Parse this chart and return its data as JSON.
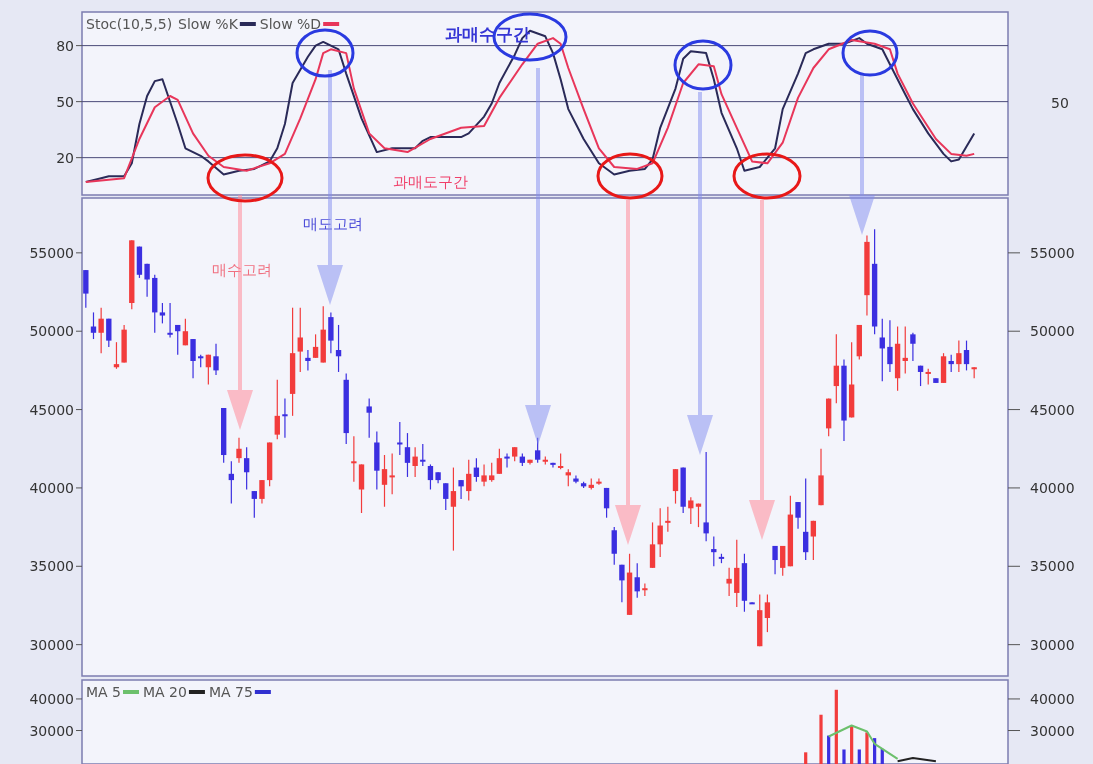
{
  "chart_data": [
    {
      "type": "line",
      "title": "Stoc(10,5,5)",
      "ylim": [
        0,
        98
      ],
      "yticks": [
        20,
        50,
        80
      ],
      "grid": "y",
      "legend": "top left",
      "line_style": "solid",
      "annotations": [
        "과매수구간",
        "과매도구간",
        "50"
      ],
      "categories": [
        null,
        null,
        null,
        null,
        null,
        null,
        null,
        null,
        null,
        null,
        null,
        null,
        null,
        null,
        null,
        null,
        null,
        null,
        null,
        null,
        null,
        null,
        null,
        null,
        null,
        null,
        null,
        null,
        null,
        null,
        null,
        null,
        null,
        null,
        null,
        null,
        null,
        null,
        null,
        null,
        null,
        null,
        null,
        null,
        null,
        null,
        null,
        null,
        null,
        null,
        null,
        null,
        null,
        null,
        null,
        null,
        null,
        null,
        null,
        null,
        null,
        null,
        null,
        null,
        null,
        null,
        null,
        null,
        null,
        null,
        null,
        null,
        null,
        null,
        null,
        null,
        null,
        null,
        null,
        null,
        null,
        null,
        null,
        null,
        null,
        null,
        null,
        null,
        null,
        null,
        null,
        null,
        null,
        null,
        null,
        null,
        null,
        null,
        null,
        null,
        null,
        null,
        null,
        null,
        null,
        null,
        null,
        null,
        null,
        null,
        null,
        null,
        null,
        null,
        null,
        null,
        null
      ],
      "series": [
        {
          "name": "Slow %K",
          "color": "#2a2a58",
          "values": [
            7,
            null,
            9,
            10,
            null,
            10,
            17,
            38,
            53,
            61,
            62,
            null,
            38,
            25,
            null,
            21,
            18,
            null,
            11,
            null,
            13,
            null,
            14,
            null,
            18,
            25,
            38,
            60,
            null,
            74,
            80,
            82,
            null,
            78,
            65,
            null,
            41,
            null,
            23,
            null,
            25,
            25,
            null,
            25,
            29,
            31,
            null,
            31,
            null,
            31,
            33,
            null,
            42,
            49,
            60,
            null,
            75,
            84,
            88,
            null,
            85,
            76,
            62,
            46,
            null,
            30,
            null,
            17,
            null,
            11,
            null,
            13,
            null,
            14,
            19,
            36,
            null,
            57,
            73,
            77,
            null,
            76,
            62,
            44,
            null,
            25,
            13,
            null,
            15,
            null,
            25,
            46,
            null,
            65,
            76,
            78,
            null,
            81,
            null,
            81,
            null,
            84,
            81,
            null,
            78,
            70,
            null,
            54,
            46,
            null,
            33,
            null,
            22,
            18,
            19,
            26,
            33
          ]
        },
        {
          "name": "Slow %D",
          "color": "#e8365a",
          "values": [
            7,
            null,
            null,
            null,
            null,
            9,
            null,
            30,
            null,
            47,
            null,
            53,
            51,
            null,
            33,
            null,
            21,
            null,
            15,
            null,
            null,
            13,
            null,
            null,
            17,
            null,
            22,
            null,
            41,
            null,
            62,
            76,
            78,
            null,
            76,
            57,
            null,
            33,
            null,
            25,
            null,
            null,
            23,
            null,
            null,
            30,
            null,
            null,
            null,
            36,
            null,
            null,
            37,
            null,
            52,
            null,
            null,
            70,
            null,
            81,
            null,
            84,
            81,
            68,
            null,
            46,
            null,
            25,
            null,
            15,
            null,
            null,
            14,
            null,
            17,
            null,
            36,
            null,
            60,
            null,
            70,
            null,
            69,
            54,
            null,
            36,
            null,
            18,
            null,
            17,
            null,
            28,
            null,
            52,
            null,
            68,
            null,
            78,
            null,
            null,
            83,
            null,
            null,
            81,
            null,
            78,
            65,
            null,
            49,
            null,
            null,
            30,
            null,
            22,
            null,
            21,
            22
          ]
        }
      ]
    },
    {
      "type": "candlestick",
      "ylim": [
        28000,
        58500
      ],
      "yticks": [
        30000,
        35000,
        40000,
        45000,
        50000,
        55000
      ],
      "y2lim": [
        28000,
        58500
      ],
      "y2ticks": [
        30000,
        35000,
        40000,
        45000,
        50000,
        55000
      ],
      "annotations": [
        "매수고려",
        "매도고려"
      ],
      "categories": [
        null,
        null,
        null,
        null,
        null,
        null,
        null,
        null,
        null,
        null,
        null,
        null,
        null,
        null,
        null,
        null,
        null,
        null,
        null,
        null,
        null,
        null,
        null,
        null,
        null,
        null,
        null,
        null,
        null,
        null,
        null,
        null,
        null,
        null,
        null,
        null,
        null,
        null,
        null,
        null,
        null,
        null,
        null,
        null,
        null,
        null,
        null,
        null,
        null,
        null,
        null,
        null,
        null,
        null,
        null,
        null,
        null,
        null,
        null,
        null,
        null,
        null,
        null,
        null,
        null,
        null,
        null,
        null,
        null,
        null,
        null,
        null,
        null,
        null,
        null,
        null,
        null,
        null,
        null,
        null,
        null,
        null,
        null,
        null,
        null,
        null,
        null,
        null,
        null,
        null,
        null,
        null,
        null,
        null,
        null,
        null,
        null,
        null,
        null,
        null,
        null,
        null,
        null,
        null,
        null,
        null,
        null,
        null,
        null,
        null,
        null,
        null,
        null,
        null,
        null,
        null,
        null
      ],
      "ohlc": [
        [
          53900,
          53900,
          51500,
          52400
        ],
        [
          50300,
          51200,
          49500,
          49900
        ],
        [
          49900,
          51500,
          48600,
          50800
        ],
        [
          50800,
          50800,
          49000,
          49400
        ],
        [
          47700,
          49300,
          47600,
          47900
        ],
        [
          48000,
          50400,
          48000,
          50100
        ],
        [
          51800,
          55800,
          51400,
          55800
        ],
        [
          55400,
          55400,
          53400,
          53600
        ],
        [
          54300,
          54300,
          52200,
          53300
        ],
        [
          53400,
          53600,
          49900,
          51200
        ],
        [
          51200,
          51800,
          50500,
          51000
        ],
        [
          49900,
          51800,
          49600,
          49800
        ],
        [
          50400,
          50400,
          48500,
          50000
        ],
        [
          49100,
          50800,
          49100,
          50000
        ],
        [
          49500,
          49500,
          47000,
          48100
        ],
        [
          48400,
          48500,
          47700,
          48300
        ],
        [
          47700,
          48500,
          46600,
          48500
        ],
        [
          48400,
          49200,
          47200,
          47500
        ],
        [
          45100,
          45100,
          41600,
          42100
        ],
        [
          40900,
          41700,
          39000,
          40500
        ],
        [
          41900,
          43200,
          41600,
          42500
        ],
        [
          41900,
          42600,
          39900,
          41000
        ],
        [
          39800,
          39800,
          38100,
          39300
        ],
        [
          39300,
          40500,
          39000,
          40500
        ],
        [
          40500,
          42900,
          40100,
          42900
        ],
        [
          43400,
          46900,
          43100,
          44600
        ],
        [
          44700,
          45700,
          43200,
          44600
        ],
        [
          46000,
          51500,
          44600,
          48600
        ],
        [
          48700,
          51500,
          47400,
          49600
        ],
        [
          48300,
          48800,
          47500,
          48100
        ],
        [
          48300,
          49800,
          48300,
          49000
        ],
        [
          48000,
          51600,
          48000,
          50100
        ],
        [
          50900,
          51200,
          48600,
          49400
        ],
        [
          48800,
          50400,
          47400,
          48400
        ],
        [
          46900,
          47300,
          42800,
          43500
        ],
        [
          41600,
          43300,
          40400,
          41700
        ],
        [
          39900,
          41500,
          38400,
          41500
        ],
        [
          45200,
          45700,
          43200,
          44800
        ],
        [
          42900,
          43600,
          39900,
          41100
        ],
        [
          40200,
          42100,
          38800,
          41200
        ],
        [
          40700,
          42200,
          39600,
          40800
        ],
        [
          42900,
          44200,
          42100,
          42800
        ],
        [
          42600,
          43500,
          40700,
          41600
        ],
        [
          41400,
          42600,
          40700,
          42000
        ],
        [
          41800,
          42800,
          41400,
          41700
        ],
        [
          41400,
          41500,
          39900,
          40500
        ],
        [
          41000,
          41000,
          40300,
          40500
        ],
        [
          40300,
          40300,
          38600,
          39300
        ],
        [
          38800,
          41300,
          36000,
          39800
        ],
        [
          40500,
          40500,
          39300,
          40100
        ],
        [
          39800,
          41800,
          39200,
          40900
        ],
        [
          41300,
          41900,
          40400,
          40700
        ],
        [
          40400,
          41500,
          40100,
          40800
        ],
        [
          40500,
          41600,
          40400,
          40800
        ],
        [
          40900,
          42500,
          40900,
          41900
        ],
        [
          42000,
          42200,
          41300,
          41900
        ],
        [
          42000,
          42600,
          41700,
          42600
        ],
        [
          42000,
          42200,
          41400,
          41600
        ],
        [
          41600,
          41800,
          41500,
          41800
        ],
        [
          42400,
          43200,
          41600,
          41800
        ],
        [
          41700,
          42000,
          41500,
          41800
        ],
        [
          41600,
          41600,
          41300,
          41500
        ],
        [
          41300,
          42200,
          41200,
          41400
        ],
        [
          40800,
          41200,
          40100,
          41000
        ],
        [
          40600,
          40800,
          40300,
          40400
        ],
        [
          40300,
          40400,
          40000,
          40100
        ],
        [
          40000,
          40600,
          39900,
          40200
        ],
        [
          40300,
          40600,
          40200,
          40400
        ],
        [
          40000,
          40000,
          38100,
          38700
        ],
        [
          37300,
          37500,
          35100,
          35800
        ],
        [
          35100,
          35100,
          32700,
          34100
        ],
        [
          31900,
          35800,
          31900,
          34600
        ],
        [
          34300,
          35200,
          33000,
          33400
        ],
        [
          33500,
          33900,
          33100,
          33600
        ],
        [
          34900,
          37800,
          34900,
          36400
        ],
        [
          36400,
          38700,
          35600,
          37600
        ],
        [
          37800,
          38800,
          37200,
          37900
        ],
        [
          39800,
          41200,
          39000,
          41200
        ],
        [
          41300,
          41300,
          38400,
          38800
        ],
        [
          38700,
          39400,
          37700,
          39200
        ],
        [
          38800,
          39000,
          37500,
          39000
        ],
        [
          37800,
          42300,
          36600,
          37100
        ],
        [
          36100,
          36900,
          35000,
          35900
        ],
        [
          35600,
          35800,
          35200,
          35500
        ],
        [
          33900,
          34900,
          33100,
          34200
        ],
        [
          33300,
          36700,
          32400,
          34900
        ],
        [
          35200,
          35800,
          32100,
          32800
        ],
        [
          32700,
          32700,
          32600,
          32600
        ],
        [
          29900,
          33200,
          29900,
          32200
        ],
        [
          31700,
          33200,
          30800,
          32700
        ],
        [
          36300,
          36300,
          34500,
          35400
        ],
        [
          34900,
          36300,
          34400,
          36300
        ],
        [
          35000,
          39500,
          35000,
          38300
        ],
        [
          39100,
          39100,
          37400,
          38100
        ],
        [
          37200,
          40600,
          35400,
          35900
        ],
        [
          36900,
          37900,
          35400,
          37900
        ],
        [
          38900,
          42500,
          38900,
          40800
        ],
        [
          43800,
          45700,
          43300,
          45700
        ],
        [
          46500,
          49800,
          45400,
          47800
        ],
        [
          47800,
          48200,
          43000,
          44300
        ],
        [
          44500,
          49300,
          44500,
          46600
        ],
        [
          48400,
          50400,
          48200,
          50400
        ],
        [
          52300,
          56100,
          51000,
          55700
        ],
        [
          54300,
          56500,
          49800,
          50300
        ],
        [
          49600,
          50800,
          46800,
          48900
        ],
        [
          49000,
          50700,
          47400,
          47900
        ],
        [
          47000,
          50300,
          46200,
          49200
        ],
        [
          48100,
          50300,
          47300,
          48300
        ],
        [
          49800,
          49900,
          48100,
          49200
        ],
        [
          47800,
          47800,
          46500,
          47400
        ],
        [
          47300,
          47600,
          46600,
          47400
        ],
        [
          47000,
          47000,
          46700,
          46700
        ],
        [
          46700,
          48600,
          46700,
          48400
        ],
        [
          48100,
          48500,
          47400,
          47900
        ],
        [
          47900,
          49400,
          47400,
          48600
        ],
        [
          48800,
          49400,
          47500,
          47900
        ],
        [
          47600,
          47700,
          47000,
          47700
        ]
      ],
      "colors": [
        "#3b2fe0",
        "#3b2fe0",
        "#f23c3c",
        "#3b2fe0",
        "#f23c3c",
        "#f23c3c",
        "#f23c3c",
        "#3b2fe0",
        "#3b2fe0",
        "#3b2fe0",
        "#3b2fe0",
        "#3b2fe0",
        "#3b2fe0",
        "#f23c3c",
        "#3b2fe0",
        "#3b2fe0",
        "#f23c3c",
        "#3b2fe0",
        "#3b2fe0",
        "#3b2fe0",
        "#f23c3c",
        "#3b2fe0",
        "#3b2fe0",
        "#f23c3c",
        "#f23c3c",
        "#f23c3c",
        "#3b2fe0",
        "#f23c3c",
        "#f23c3c",
        "#3b2fe0",
        "#f23c3c",
        "#f23c3c",
        "#3b2fe0",
        "#3b2fe0",
        "#3b2fe0",
        "#f23c3c",
        "#f23c3c",
        "#3b2fe0",
        "#3b2fe0",
        "#f23c3c",
        "#f23c3c",
        "#3b2fe0",
        "#3b2fe0",
        "#f23c3c",
        "#3b2fe0",
        "#3b2fe0",
        "#3b2fe0",
        "#3b2fe0",
        "#f23c3c",
        "#3b2fe0",
        "#f23c3c",
        "#3b2fe0",
        "#f23c3c",
        "#f23c3c",
        "#f23c3c",
        "#3b2fe0",
        "#f23c3c",
        "#3b2fe0",
        "#f23c3c",
        "#3b2fe0",
        "#f23c3c",
        "#3b2fe0",
        "#f23c3c",
        "#f23c3c",
        "#3b2fe0",
        "#3b2fe0",
        "#f23c3c",
        "#f23c3c",
        "#3b2fe0",
        "#3b2fe0",
        "#3b2fe0",
        "#f23c3c",
        "#3b2fe0",
        "#f23c3c",
        "#f23c3c",
        "#f23c3c",
        "#f23c3c",
        "#f23c3c",
        "#3b2fe0",
        "#f23c3c",
        "#f23c3c",
        "#3b2fe0",
        "#3b2fe0",
        "#3b2fe0",
        "#f23c3c",
        "#f23c3c",
        "#3b2fe0",
        "#3b2fe0",
        "#f23c3c",
        "#f23c3c",
        "#3b2fe0",
        "#f23c3c",
        "#f23c3c",
        "#3b2fe0",
        "#3b2fe0",
        "#f23c3c",
        "#f23c3c",
        "#f23c3c",
        "#f23c3c",
        "#3b2fe0",
        "#f23c3c",
        "#f23c3c",
        "#f23c3c",
        "#3b2fe0",
        "#3b2fe0",
        "#3b2fe0",
        "#f23c3c",
        "#f23c3c",
        "#3b2fe0",
        "#3b2fe0",
        "#f23c3c",
        "#3b2fe0",
        "#f23c3c",
        "#3b2fe0",
        "#f23c3c",
        "#3b2fe0",
        "#f23c3c"
      ]
    },
    {
      "type": "bar",
      "ylim": [
        19400,
        46000
      ],
      "yticks": [
        30000,
        40000
      ],
      "y2lim": [
        19400,
        46000
      ],
      "y2ticks": [
        30000,
        40000
      ],
      "legend": "top left",
      "categories": [
        null,
        null,
        null,
        null,
        null,
        null,
        null,
        null,
        null,
        null,
        null,
        null,
        null,
        null,
        null,
        null,
        null,
        null,
        null,
        null,
        null,
        null,
        null,
        null,
        null,
        null,
        null,
        null,
        null,
        null,
        null,
        null,
        null,
        null,
        null,
        null,
        null,
        null,
        null,
        null,
        null,
        null,
        null,
        null,
        null,
        null,
        null,
        null,
        null,
        null,
        null,
        null,
        null,
        null,
        null,
        null,
        null,
        null,
        null,
        null,
        null,
        null,
        null,
        null,
        null,
        null,
        null,
        null,
        null,
        null,
        null,
        null,
        null,
        null,
        null,
        null,
        null,
        null,
        null,
        null,
        null,
        null,
        null,
        null,
        null,
        null,
        null,
        null,
        null,
        null,
        null,
        null,
        null,
        null,
        null,
        null,
        null,
        null,
        null,
        null,
        null,
        null,
        null,
        null,
        null,
        null,
        null,
        null,
        null,
        null,
        null,
        null,
        null,
        null,
        null,
        null,
        null
      ],
      "series": [
        {
          "values": [
            null,
            null,
            null,
            null,
            null,
            null,
            null,
            null,
            null,
            null,
            null,
            null,
            null,
            null,
            null,
            null,
            null,
            null,
            null,
            null,
            null,
            null,
            null,
            null,
            null,
            null,
            null,
            null,
            null,
            null,
            null,
            null,
            null,
            null,
            null,
            null,
            null,
            null,
            null,
            null,
            null,
            null,
            null,
            null,
            null,
            null,
            null,
            null,
            null,
            null,
            null,
            null,
            null,
            null,
            null,
            null,
            null,
            null,
            null,
            null,
            null,
            null,
            null,
            null,
            null,
            null,
            null,
            null,
            null,
            null,
            null,
            null,
            null,
            null,
            null,
            null,
            null,
            null,
            null,
            null,
            null,
            null,
            null,
            null,
            null,
            null,
            null,
            null,
            null,
            null,
            null,
            null,
            null,
            null,
            23100,
            null,
            35000,
            28400,
            42900,
            24000,
            31600,
            24000,
            29400,
            27600,
            24200,
            null,
            null,
            null,
            null,
            null,
            null,
            null,
            null,
            null,
            null,
            null,
            null
          ],
          "colors": [
            null,
            null,
            null,
            null,
            null,
            null,
            null,
            null,
            null,
            null,
            null,
            null,
            null,
            null,
            null,
            null,
            null,
            null,
            null,
            null,
            null,
            null,
            null,
            null,
            null,
            null,
            null,
            null,
            null,
            null,
            null,
            null,
            null,
            null,
            null,
            null,
            null,
            null,
            null,
            null,
            null,
            null,
            null,
            null,
            null,
            null,
            null,
            null,
            null,
            null,
            null,
            null,
            null,
            null,
            null,
            null,
            null,
            null,
            null,
            null,
            null,
            null,
            null,
            null,
            null,
            null,
            null,
            null,
            null,
            null,
            null,
            null,
            null,
            null,
            null,
            null,
            null,
            null,
            null,
            null,
            null,
            null,
            null,
            null,
            null,
            null,
            null,
            null,
            null,
            null,
            null,
            null,
            null,
            null,
            "#f23c3c",
            null,
            "#f23c3c",
            "#3b2fe0",
            "#f23c3c",
            "#3b2fe0",
            "#f23c3c",
            "#3b2fe0",
            "#f23c3c",
            "#3b2fe0",
            "#3b2fe0",
            null,
            null,
            null,
            null,
            null,
            null,
            null,
            null,
            null,
            null,
            null,
            null
          ]
        },
        {
          "type": "line",
          "name": "MA 5",
          "color": "#6cc06c",
          "values": [
            null,
            null,
            null,
            null,
            null,
            null,
            null,
            null,
            null,
            null,
            null,
            null,
            null,
            null,
            null,
            null,
            null,
            null,
            null,
            null,
            null,
            null,
            null,
            null,
            null,
            null,
            null,
            null,
            null,
            null,
            null,
            null,
            null,
            null,
            null,
            null,
            null,
            null,
            null,
            null,
            null,
            null,
            null,
            null,
            null,
            null,
            null,
            null,
            null,
            null,
            null,
            null,
            null,
            null,
            null,
            null,
            null,
            null,
            null,
            null,
            null,
            null,
            null,
            null,
            null,
            null,
            null,
            null,
            null,
            null,
            null,
            null,
            null,
            null,
            null,
            null,
            null,
            null,
            null,
            null,
            null,
            null,
            null,
            null,
            null,
            null,
            null,
            null,
            null,
            null,
            null,
            null,
            null,
            null,
            null,
            null,
            null,
            28100,
            null,
            null,
            31600,
            null,
            29700,
            25800,
            null,
            null,
            21000,
            null,
            null,
            null,
            null,
            null,
            null,
            null,
            null,
            null,
            null
          ]
        },
        {
          "type": "line",
          "name": "MA 20",
          "color": "#222222",
          "values": [
            null,
            null,
            null,
            null,
            null,
            null,
            null,
            null,
            null,
            null,
            null,
            null,
            null,
            null,
            null,
            null,
            null,
            null,
            null,
            null,
            null,
            null,
            null,
            null,
            null,
            null,
            null,
            null,
            null,
            null,
            null,
            null,
            null,
            null,
            null,
            null,
            null,
            null,
            null,
            null,
            null,
            null,
            null,
            null,
            null,
            null,
            null,
            null,
            null,
            null,
            null,
            null,
            null,
            null,
            null,
            null,
            null,
            null,
            null,
            null,
            null,
            null,
            null,
            null,
            null,
            null,
            null,
            null,
            null,
            null,
            null,
            null,
            null,
            null,
            null,
            null,
            null,
            null,
            null,
            null,
            null,
            null,
            null,
            null,
            null,
            null,
            null,
            null,
            null,
            null,
            null,
            null,
            null,
            null,
            null,
            null,
            null,
            null,
            null,
            null,
            null,
            null,
            null,
            null,
            null,
            null,
            20300,
            null,
            21300,
            null,
            null,
            20300,
            null,
            null,
            null,
            null,
            null
          ]
        },
        {
          "type": "line",
          "name": "MA 75",
          "color": "#3030d0",
          "values": [
            null,
            null,
            null,
            null,
            null,
            null,
            null,
            null,
            null,
            null,
            null,
            null,
            null,
            null,
            null,
            null,
            null,
            null,
            null,
            null,
            null,
            null,
            null,
            null,
            null,
            null,
            null,
            null,
            null,
            null,
            null,
            null,
            null,
            null,
            null,
            null,
            null,
            null,
            null,
            null,
            null,
            null,
            null,
            null,
            null,
            null,
            null,
            null,
            null,
            null,
            null,
            null,
            null,
            null,
            null,
            null,
            null,
            null,
            null,
            null,
            null,
            null,
            null,
            null,
            null,
            null,
            null,
            null,
            null,
            null,
            null,
            null,
            null,
            null,
            null,
            null,
            null,
            null,
            null,
            null,
            null,
            null,
            null,
            null,
            null,
            null,
            null,
            null,
            null,
            null,
            null,
            null,
            null,
            null,
            null,
            null,
            null,
            null,
            null,
            null,
            null,
            null,
            null,
            null,
            null,
            null,
            null,
            null,
            null,
            null,
            null,
            null,
            null,
            null,
            null,
            null,
            null
          ]
        }
      ]
    }
  ]
}
